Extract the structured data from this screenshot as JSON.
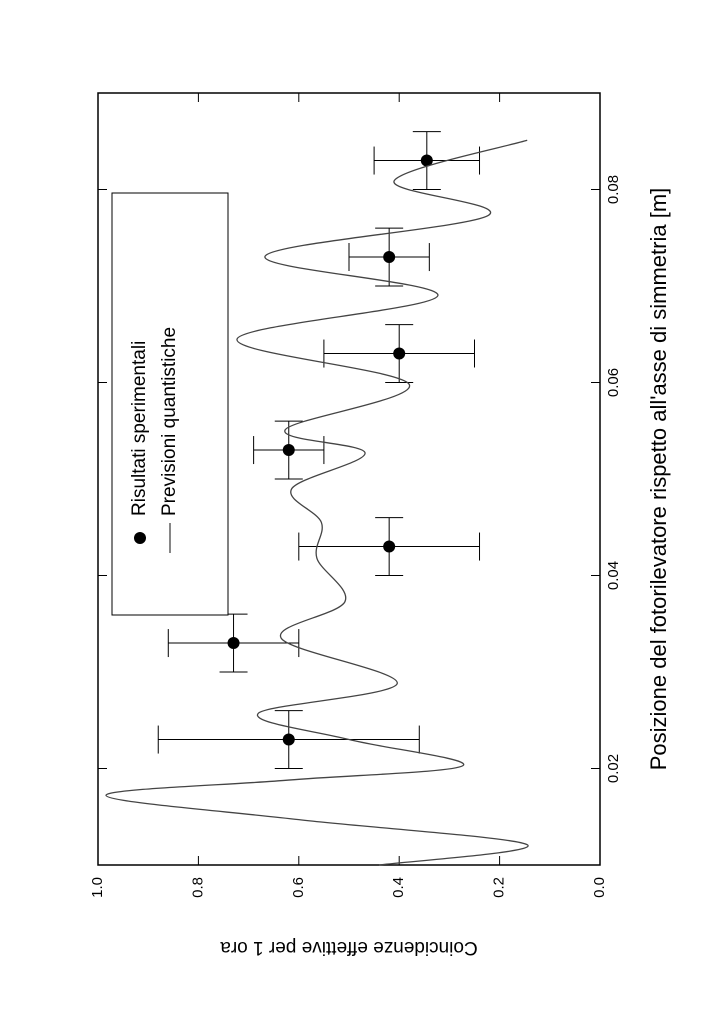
{
  "chart_data": {
    "type": "scatter",
    "x_label": "Posizione del fotorilevatore rispetto all'asse di simmetria [m]",
    "y_label": "Coincidenze effettive per 1 ora",
    "xlim": [
      0.01,
      0.09
    ],
    "xticks": [
      0.02,
      0.04,
      0.06,
      0.08
    ],
    "ylim": [
      0,
      1
    ],
    "yticks": [
      {
        "value": 0,
        "label": "0.0"
      },
      {
        "value": 0.2,
        "label": "0.2"
      },
      {
        "value": 0.4,
        "label": "0.4"
      },
      {
        "value": 0.6,
        "label": "0.6"
      },
      {
        "value": 0.8,
        "label": "0.8"
      },
      {
        "value": 1,
        "label": "1.0"
      }
    ],
    "grid": false,
    "legend": "upper right",
    "series": [
      {
        "name": "Risultati sperimentali",
        "mode": "points",
        "color": "#000000",
        "x": [
          0.023,
          0.033,
          0.043,
          0.053,
          0.063,
          0.073,
          0.083
        ],
        "values": [
          0.62,
          0.73,
          0.42,
          0.62,
          0.4,
          0.42,
          0.345
        ],
        "xerr": [
          0.003,
          0.003,
          0.003,
          0.003,
          0.003,
          0.003,
          0.003
        ],
        "yerr": [
          0.26,
          0.13,
          0.18,
          0.07,
          0.15,
          0.08,
          0.105
        ]
      },
      {
        "name": "Previsioni quantistiche",
        "mode": "line",
        "color": "#444444",
        "x": [
          0.01,
          0.0121,
          0.0147,
          0.0172,
          0.0188,
          0.0203,
          0.023,
          0.0257,
          0.0288,
          0.0335,
          0.0373,
          0.0418,
          0.0455,
          0.049,
          0.0527,
          0.0551,
          0.0598,
          0.0645,
          0.069,
          0.0731,
          0.0773,
          0.0809,
          0.0851
        ],
        "values": [
          0.44,
          0.145,
          0.6,
          0.984,
          0.62,
          0.273,
          0.5,
          0.681,
          0.404,
          0.635,
          0.508,
          0.564,
          0.555,
          0.614,
          0.468,
          0.627,
          0.38,
          0.723,
          0.323,
          0.667,
          0.223,
          0.41,
          0.145
        ]
      }
    ]
  }
}
